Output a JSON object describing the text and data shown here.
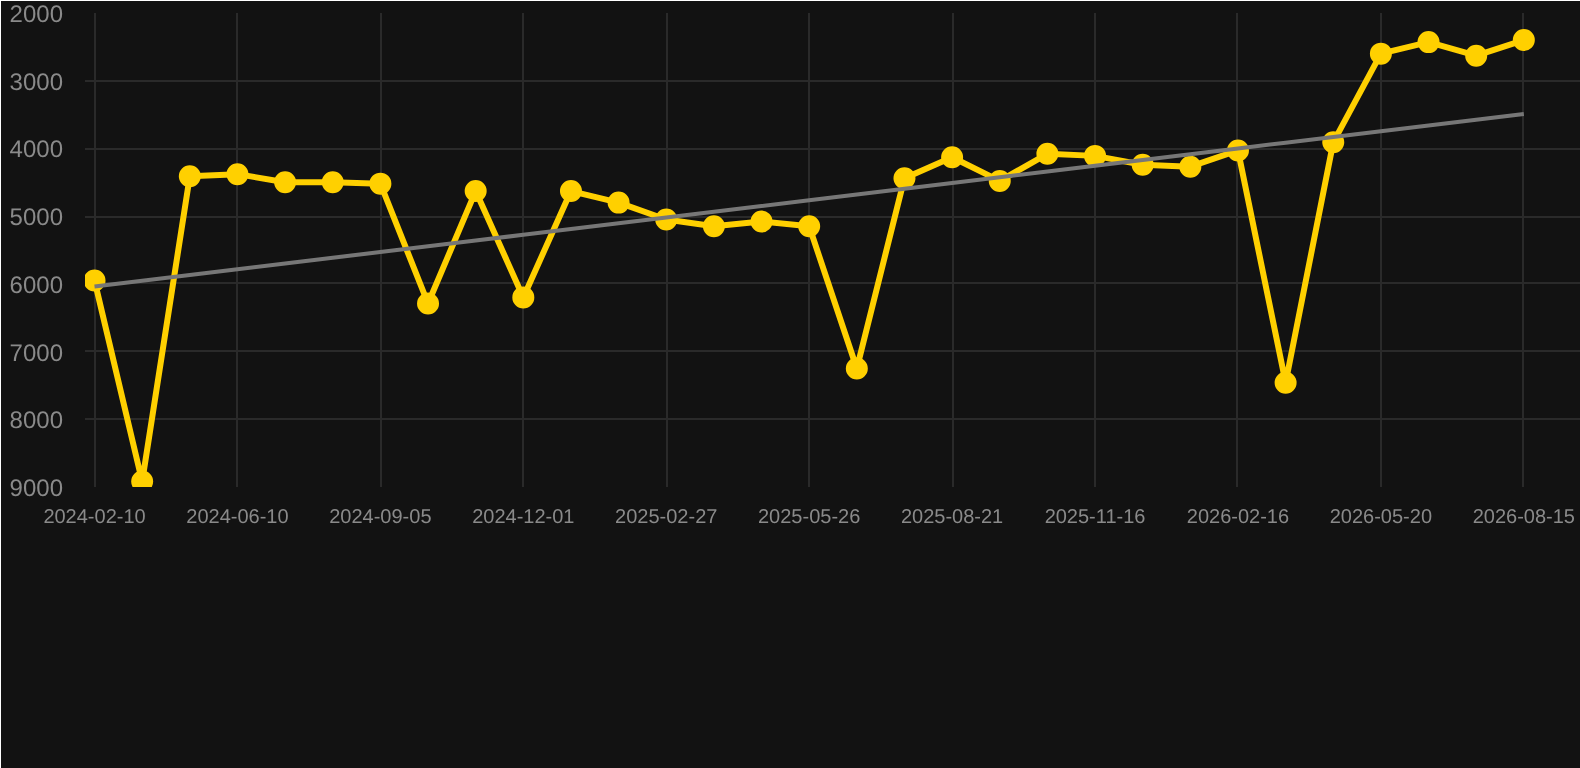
{
  "chart_data": {
    "type": "line",
    "categories": [
      "2024-02-10",
      null,
      null,
      "2024-06-10",
      null,
      null,
      "2024-09-05",
      null,
      null,
      "2024-12-01",
      null,
      null,
      "2025-02-27",
      null,
      null,
      "2025-05-26",
      null,
      null,
      "2025-08-21",
      null,
      null,
      "2025-11-16",
      null,
      null,
      "2026-02-16",
      null,
      null,
      "2026-05-20",
      null,
      null,
      "2026-08-15"
    ],
    "series": [
      {
        "color": "#ffd000",
        "marker": "circle",
        "values": [
          5950,
          8920,
          4410,
          4380,
          4500,
          4500,
          4520,
          6290,
          4630,
          6200,
          4630,
          4800,
          5050,
          5150,
          5080,
          5150,
          7250,
          4440,
          4130,
          4480,
          4080,
          4110,
          4240,
          4270,
          4030,
          7460,
          3910,
          2600,
          2430,
          2630,
          2400
        ]
      },
      {
        "type": "line",
        "color": "#777777",
        "marker": "none",
        "values": [
          6040,
          5955,
          5870,
          5785,
          5700,
          5615,
          5530,
          5445,
          5360,
          5275,
          5190,
          5105,
          5020,
          4935,
          4850,
          4765,
          4680,
          4595,
          4510,
          4425,
          4340,
          4255,
          4170,
          4085,
          4000,
          3915,
          3830,
          3745,
          3660,
          3575,
          3490
        ]
      }
    ],
    "ylim": [
      9000,
      2000
    ],
    "yticks": [
      2000,
      3000,
      4000,
      5000,
      6000,
      7000,
      8000,
      9000
    ],
    "grid": true,
    "line_style": "solid"
  }
}
